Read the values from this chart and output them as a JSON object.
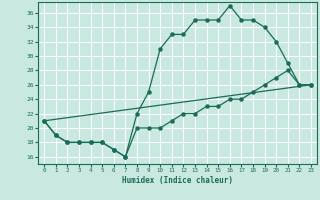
{
  "xlabel": "Humidex (Indice chaleur)",
  "bg_color": "#c8e8e0",
  "line_color": "#1a6b5a",
  "grid_color": "#ffffff",
  "xlim": [
    -0.5,
    23.5
  ],
  "ylim": [
    15,
    37.5
  ],
  "xticks": [
    0,
    1,
    2,
    3,
    4,
    5,
    6,
    7,
    8,
    9,
    10,
    11,
    12,
    13,
    14,
    15,
    16,
    17,
    18,
    19,
    20,
    21,
    22,
    23
  ],
  "yticks": [
    16,
    18,
    20,
    22,
    24,
    26,
    28,
    30,
    32,
    34,
    36
  ],
  "line1_x": [
    0,
    1,
    2,
    3,
    4,
    5,
    6,
    7,
    8,
    9,
    10,
    11,
    12,
    13,
    14,
    15,
    16,
    17,
    18,
    19,
    20,
    21,
    22,
    23
  ],
  "line1_y": [
    21,
    19,
    18,
    18,
    18,
    18,
    17,
    16,
    22,
    25,
    31,
    33,
    33,
    35,
    35,
    35,
    37,
    35,
    35,
    34,
    32,
    29,
    26,
    26
  ],
  "line2_x": [
    0,
    1,
    2,
    3,
    4,
    5,
    6,
    7,
    8,
    9,
    10,
    11,
    12,
    13,
    14,
    15,
    16,
    17,
    18,
    19,
    20,
    21,
    22,
    23
  ],
  "line2_y": [
    21,
    19,
    18,
    18,
    18,
    18,
    17,
    16,
    20,
    20,
    20,
    21,
    22,
    22,
    23,
    23,
    24,
    24,
    25,
    26,
    27,
    28,
    26,
    26
  ],
  "line3_x": [
    0,
    23
  ],
  "line3_y": [
    21,
    26
  ]
}
